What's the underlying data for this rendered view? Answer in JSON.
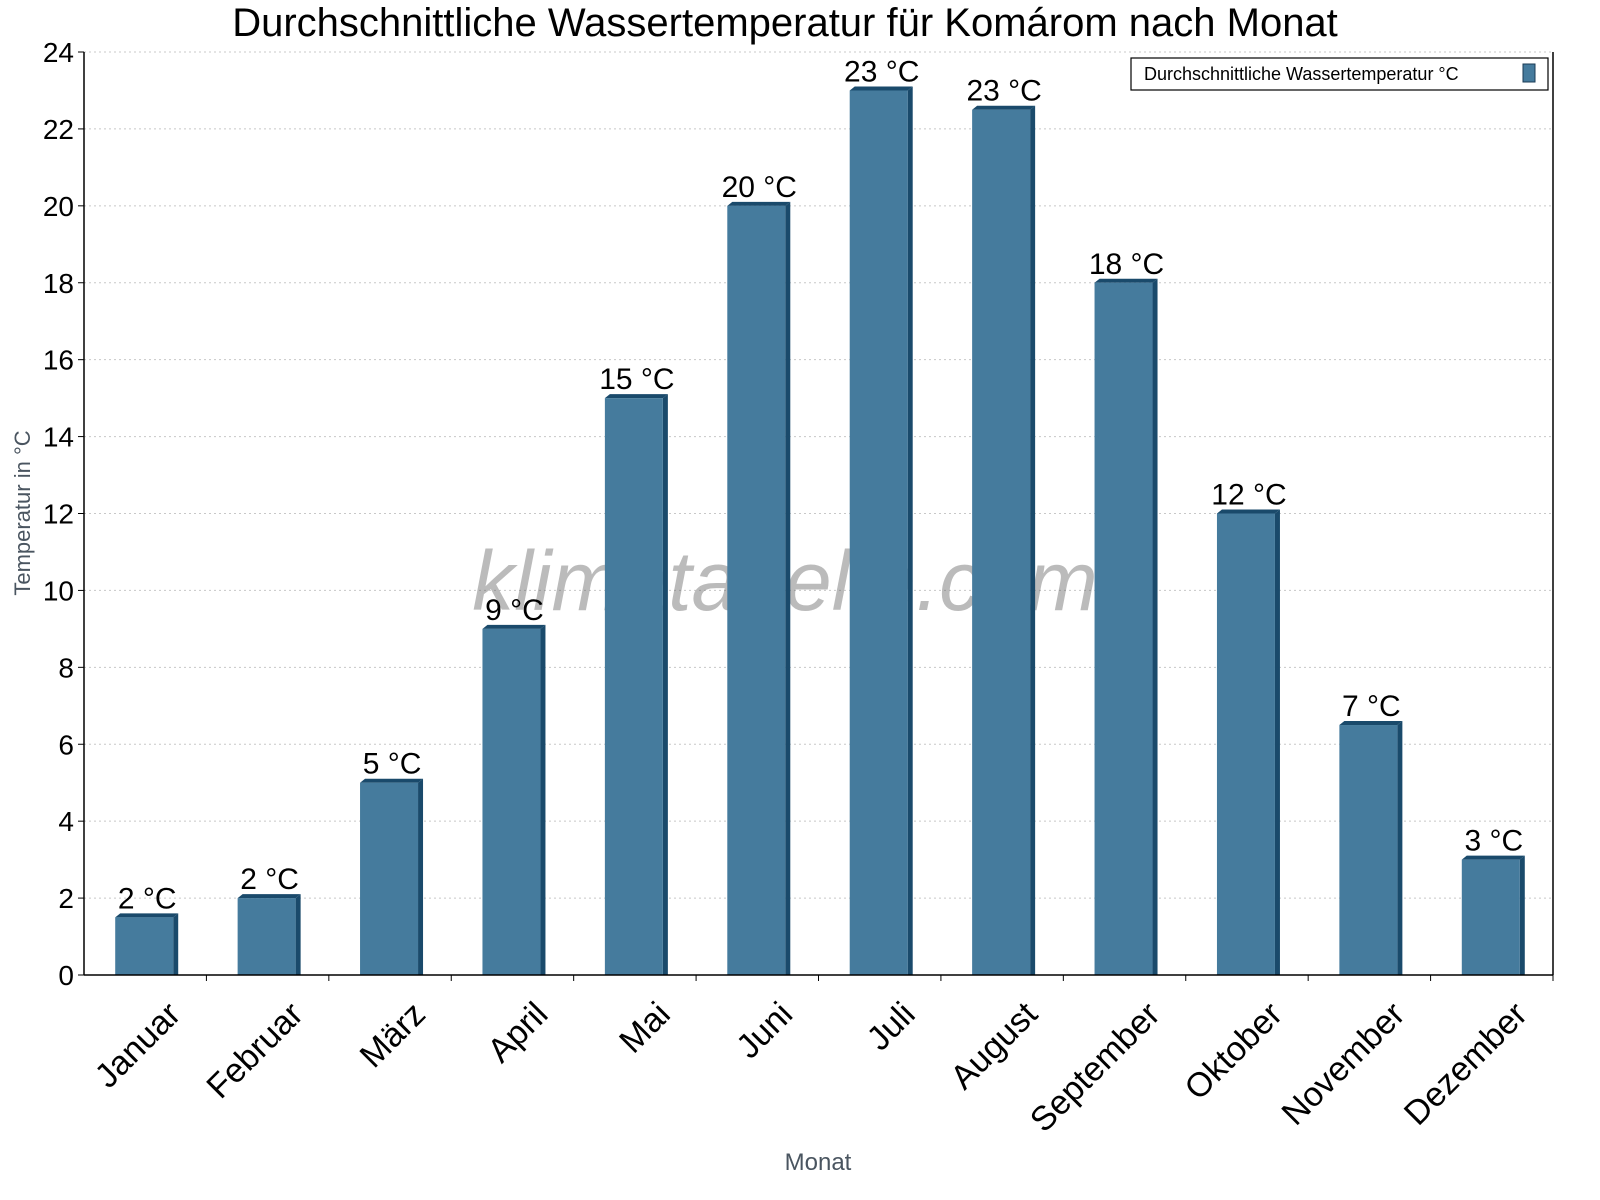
{
  "chart_data": {
    "type": "bar",
    "title": "Durchschnittliche Wassertemperatur für Komárom nach Monat",
    "xlabel": "Monat",
    "ylabel": "Temperatur in °C",
    "ylim": [
      0,
      24
    ],
    "yticks": [
      0,
      2,
      4,
      6,
      8,
      10,
      12,
      14,
      16,
      18,
      20,
      22,
      24
    ],
    "grid": true,
    "legend_position": "top-right",
    "watermark": "klimatabelle.com",
    "categories": [
      "Januar",
      "Februar",
      "März",
      "April",
      "Mai",
      "Juni",
      "Juli",
      "August",
      "September",
      "Oktober",
      "November",
      "Dezember"
    ],
    "series": [
      {
        "name": "Durchschnittliche Wassertemperatur °C",
        "color": "#457b9d",
        "values": [
          1.5,
          2,
          5,
          9,
          15,
          20,
          23,
          22.5,
          18,
          12,
          6.5,
          3
        ],
        "data_labels": [
          "2 °C",
          "2 °C",
          "5 °C",
          "9 °C",
          "15 °C",
          "20 °C",
          "23 °C",
          "23 °C",
          "18 °C",
          "12 °C",
          "7 °C",
          "3 °C"
        ]
      }
    ]
  }
}
